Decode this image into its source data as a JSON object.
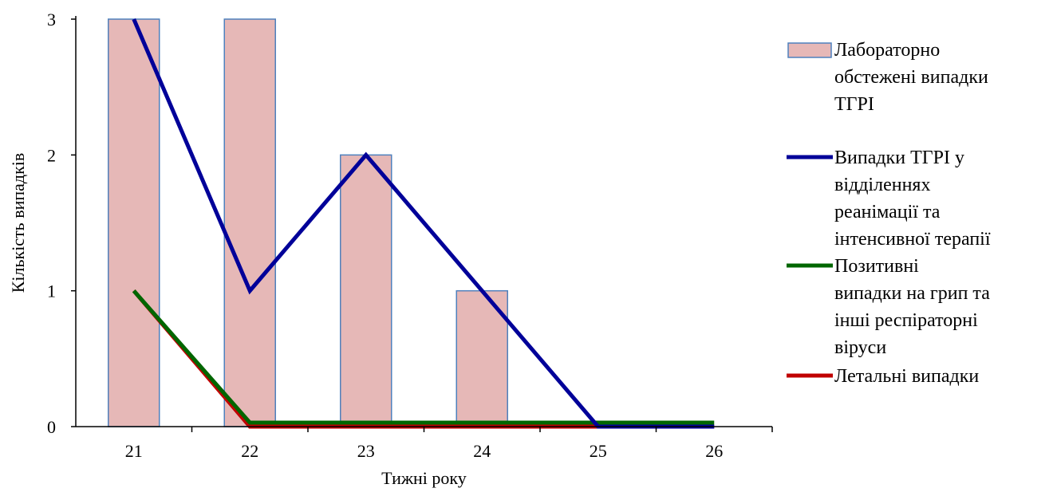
{
  "chart_data": {
    "type": "bar",
    "title": "",
    "xlabel": "Тижні року",
    "ylabel": "Кількість випадків",
    "categories": [
      "21",
      "22",
      "23",
      "24",
      "25",
      "26"
    ],
    "ylim": [
      0,
      3
    ],
    "yticks": [
      "0",
      "1",
      "2",
      "3"
    ],
    "grid": false,
    "legend_position": "right",
    "series": [
      {
        "name": "Лабораторно обстежені випадки ТГРІ",
        "kind": "bar",
        "color": "#e6b8b7",
        "stroke": "#4f81bd",
        "values": [
          3,
          3,
          2,
          1,
          0,
          0
        ]
      },
      {
        "name": "Випадки ТГРІ у відділеннях реанімації та інтенсивної терапії",
        "kind": "line",
        "color": "#000099",
        "values": [
          3,
          1,
          2,
          1,
          0,
          0
        ]
      },
      {
        "name": "Позитивні випадки на грип та інші респіраторні віруси",
        "kind": "line",
        "color": "#006600",
        "values": [
          1,
          0,
          0,
          0,
          0,
          0
        ]
      },
      {
        "name": "Летальні випадки",
        "kind": "line",
        "color": "#c00000",
        "values": [
          1,
          0,
          0,
          0,
          0,
          0
        ]
      }
    ]
  }
}
